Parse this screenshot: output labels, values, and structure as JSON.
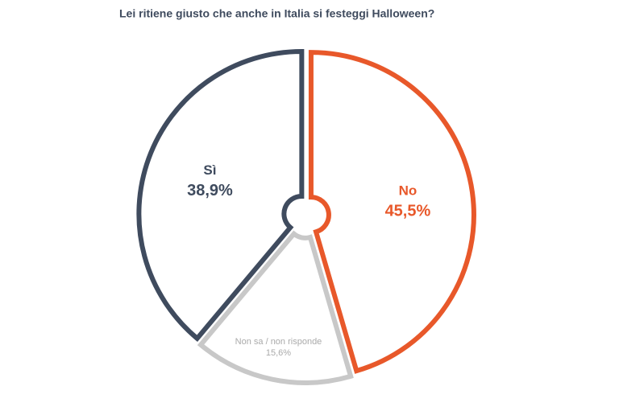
{
  "chart_data": {
    "type": "pie",
    "title": "Lei ritiene giusto che anche in Italia si festeggi Halloween?",
    "categories": [
      "No",
      "Non sa / non risponde",
      "Sì"
    ],
    "values": [
      45.5,
      15.6,
      38.9
    ],
    "value_labels": [
      "45,5%",
      "15,6%",
      "38,9%"
    ],
    "colors": [
      "#e8582a",
      "#c8c8c8",
      "#3f4b5e"
    ]
  }
}
